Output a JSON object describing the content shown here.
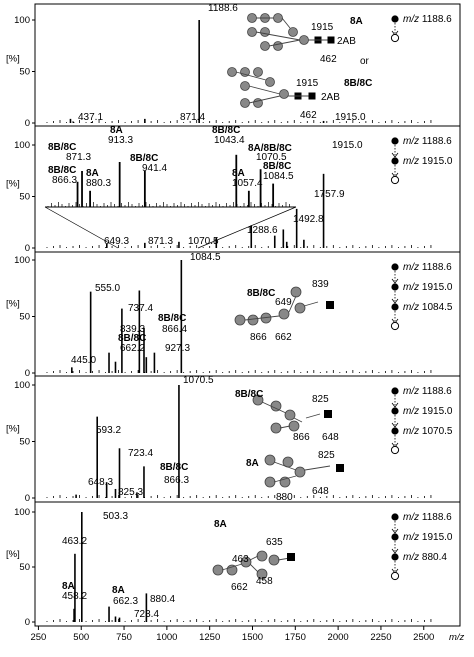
{
  "chart_data": [
    {
      "type": "bar",
      "xlim": [
        230,
        2700
      ],
      "ylim": [
        0,
        100
      ],
      "ylabel": "[%]",
      "yticks": [
        "100",
        "50",
        "0"
      ],
      "peaks": [
        [
          437.1,
          4
        ],
        [
          871.4,
          4
        ],
        [
          1188.6,
          100
        ],
        [
          1915.0,
          2
        ],
        [
          455,
          1
        ],
        [
          560,
          1
        ]
      ],
      "labels": [
        {
          "text": "1188.6",
          "x": 1188.6
        },
        {
          "text": "437.1",
          "x": 437.1
        },
        {
          "text": "871.4",
          "x": 871.4
        },
        {
          "text": "1915.0",
          "x": 1915.0
        }
      ],
      "structure_labels": [
        "8A",
        "or",
        "8B/8C"
      ],
      "structure_numbers": [
        "1915",
        "462",
        "1915",
        "462"
      ],
      "reducing_tag": [
        "2AB",
        "2AB"
      ],
      "msn": [
        "m/z 1188.6"
      ]
    },
    {
      "type": "bar",
      "xlim": [
        230,
        2700
      ],
      "ylim": [
        0,
        100
      ],
      "ylabel": "[%]",
      "yticks": [
        "100",
        "50",
        "0"
      ],
      "peaks": [
        [
          649.3,
          4
        ],
        [
          871.3,
          5
        ],
        [
          1070.5,
          6
        ],
        [
          1288.6,
          10
        ],
        [
          1492.8,
          22
        ],
        [
          1630,
          12
        ],
        [
          1680,
          18
        ],
        [
          1757.9,
          38
        ],
        [
          1800,
          8
        ],
        [
          1915.0,
          72
        ],
        [
          1700,
          6
        ]
      ],
      "labels": [
        {
          "text": "649.3",
          "x": 649.3
        },
        {
          "text": "871.3",
          "x": 871.3
        },
        {
          "text": "1070.5",
          "x": 1070.5
        },
        {
          "text": "1288.6",
          "x": 1288.6
        },
        {
          "text": "1492.8",
          "x": 1492.8
        },
        {
          "text": "1757.9",
          "x": 1757.9
        },
        {
          "text": "1915.0",
          "x": 1915.0
        }
      ],
      "inset_peaks": [
        [
          866.3,
          28
        ],
        [
          871.3,
          40
        ],
        [
          880.3,
          18
        ],
        [
          913.3,
          50
        ],
        [
          941.4,
          40
        ],
        [
          1043.4,
          58
        ],
        [
          1057.4,
          18
        ],
        [
          1070.5,
          42
        ],
        [
          1084.5,
          26
        ]
      ],
      "inset_labels": [
        {
          "text": "8B/8C",
          "bold": true
        },
        {
          "text": "871.3"
        },
        {
          "text": "8A",
          "bold": true
        },
        {
          "text": "913.3"
        },
        {
          "text": "8B/8C",
          "bold": true
        },
        {
          "text": "866.3"
        },
        {
          "text": "8A",
          "bold": true
        },
        {
          "text": "880.3"
        },
        {
          "text": "8B/8C",
          "bold": true
        },
        {
          "text": "941.4"
        },
        {
          "text": "8B/8C",
          "bold": true
        },
        {
          "text": "1043.4"
        },
        {
          "text": "8A/8B/8C",
          "bold": true
        },
        {
          "text": "1070.5"
        },
        {
          "text": "8A",
          "bold": true
        },
        {
          "text": "1057.4"
        },
        {
          "text": "8B/8C",
          "bold": true
        },
        {
          "text": "1084.5"
        }
      ],
      "msn": [
        "m/z 1188.6",
        "m/z 1915.0"
      ]
    },
    {
      "type": "bar",
      "xlim": [
        230,
        2700
      ],
      "ylim": [
        0,
        100
      ],
      "ylabel": "[%]",
      "yticks": [
        "100",
        "50",
        "0"
      ],
      "peaks": [
        [
          445.0,
          5
        ],
        [
          555.0,
          72
        ],
        [
          662.2,
          18
        ],
        [
          700,
          10
        ],
        [
          737.4,
          57
        ],
        [
          839.3,
          73
        ],
        [
          866.4,
          40
        ],
        [
          927.3,
          18
        ],
        [
          880,
          14
        ],
        [
          1084.5,
          100
        ]
      ],
      "labels": [
        {
          "text": "1084.5",
          "x": 1084.5
        },
        {
          "text": "555.0",
          "x": 555.0
        },
        {
          "text": "839.3",
          "x": 839.3
        },
        {
          "text": "737.4",
          "x": 737.4
        },
        {
          "text": "8B/8C",
          "bold": true,
          "x": 866.4
        },
        {
          "text": "866.4",
          "x": 866.4
        },
        {
          "text": "8B/8C",
          "bold": true,
          "x": 662.2
        },
        {
          "text": "662.2",
          "x": 662.2
        },
        {
          "text": "927.3",
          "x": 927.3
        },
        {
          "text": "445.0",
          "x": 445.0
        }
      ],
      "structure_labels": [
        "8B/8C"
      ],
      "structure_numbers": [
        "839",
        "649",
        "866",
        "662"
      ],
      "msn": [
        "m/z 1188.6",
        "m/z 1915.0",
        "m/z 1084.5"
      ]
    },
    {
      "type": "bar",
      "xlim": [
        230,
        2700
      ],
      "ylim": [
        0,
        100
      ],
      "ylabel": "[%]",
      "yticks": [
        "100",
        "50",
        "0"
      ],
      "peaks": [
        [
          593.2,
          72
        ],
        [
          648.3,
          14
        ],
        [
          700,
          8
        ],
        [
          723.4,
          44
        ],
        [
          825.3,
          5
        ],
        [
          866.3,
          28
        ],
        [
          1070.5,
          100
        ],
        [
          470,
          3
        ]
      ],
      "labels": [
        {
          "text": "1070.5",
          "x": 1070.5
        },
        {
          "text": "593.2",
          "x": 593.2
        },
        {
          "text": "723.4",
          "x": 723.4
        },
        {
          "text": "8B/8C",
          "bold": true,
          "x": 866.3
        },
        {
          "text": "866.3",
          "x": 866.3
        },
        {
          "text": "648.3",
          "x": 648.3
        },
        {
          "text": "825.3",
          "x": 825.3
        }
      ],
      "structure_labels": [
        "8B/8C",
        "8A"
      ],
      "structure_numbers": [
        "825",
        "866",
        "648",
        "825",
        "880",
        "648"
      ],
      "msn": [
        "m/z 1188.6",
        "m/z 1915.0",
        "m/z 1070.5"
      ]
    },
    {
      "type": "bar",
      "xlim": [
        230,
        2700
      ],
      "ylim": [
        0,
        100
      ],
      "ylabel": "[%]",
      "yticks": [
        "100",
        "50",
        "0"
      ],
      "xticks": [
        "250",
        "500",
        "750",
        "1000",
        "1250",
        "1500",
        "1750",
        "2000",
        "2250",
        "2500"
      ],
      "xlabel": "m/z",
      "peaks": [
        [
          458.2,
          12
        ],
        [
          463.2,
          62
        ],
        [
          503.3,
          100
        ],
        [
          662.3,
          14
        ],
        [
          723.4,
          4
        ],
        [
          880.4,
          26
        ],
        [
          700,
          5
        ]
      ],
      "labels": [
        {
          "text": "503.3",
          "x": 503.3
        },
        {
          "text": "463.2",
          "x": 463.2
        },
        {
          "text": "8A",
          "bold": true,
          "x": 458.2
        },
        {
          "text": "458.2",
          "x": 458.2
        },
        {
          "text": "8A",
          "bold": true,
          "x": 662.3
        },
        {
          "text": "662.3",
          "x": 662.3
        },
        {
          "text": "880.4",
          "x": 880.4
        },
        {
          "text": "723.4",
          "x": 723.4
        }
      ],
      "structure_labels": [
        "8A"
      ],
      "structure_numbers": [
        "635",
        "463",
        "458",
        "662"
      ],
      "msn": [
        "m/z 1188.6",
        "m/z 1915.0",
        "m/z 880.4"
      ]
    }
  ]
}
